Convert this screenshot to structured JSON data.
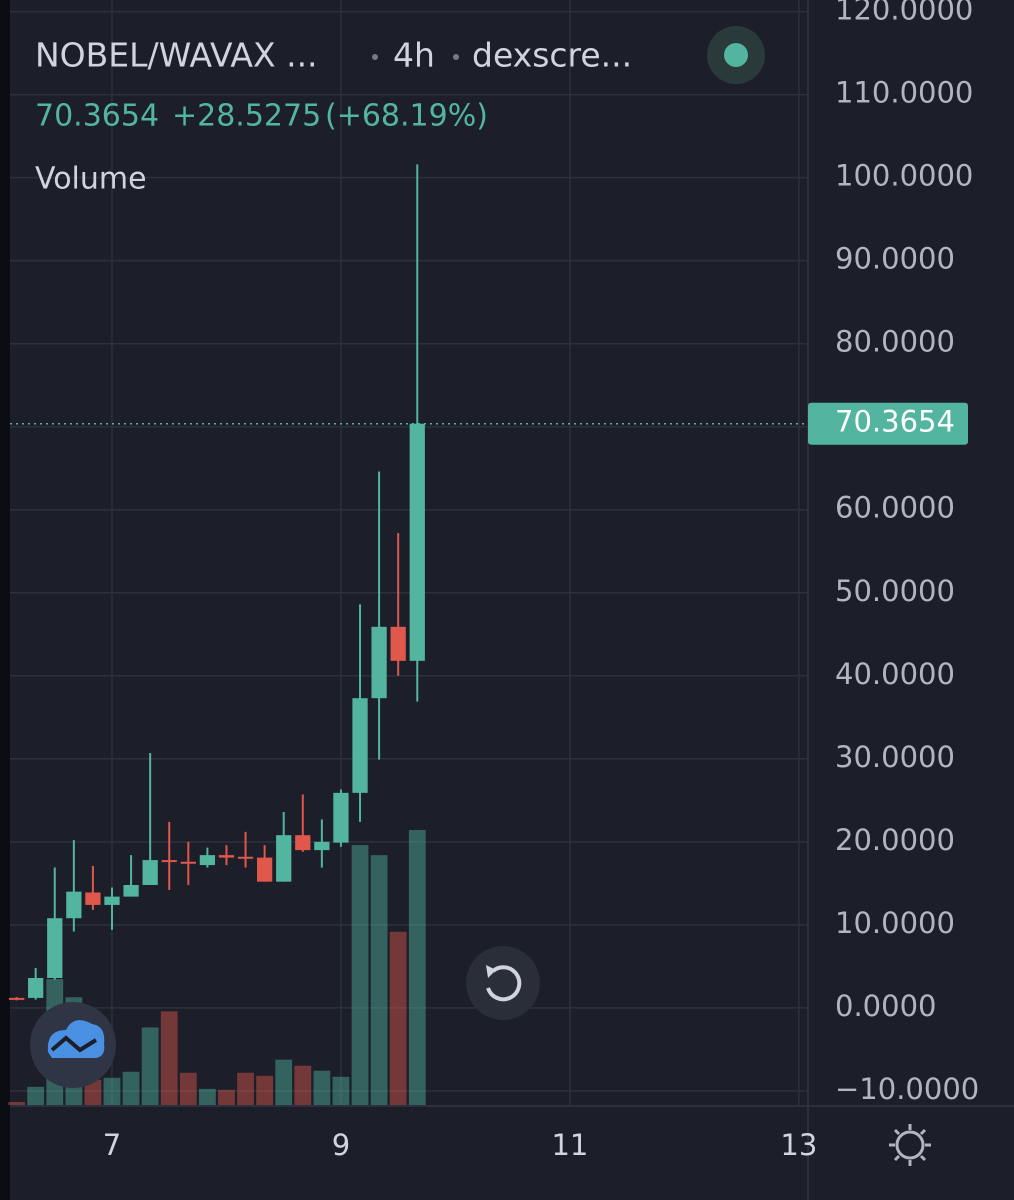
{
  "chart_data": {
    "type": "candlestick",
    "symbol": "NOBEL/WAVAX ...",
    "interval": "4h",
    "source": "dexscre...",
    "change": "+28.5275",
    "change_pct": "(+68.19%)",
    "volume_title": "Volume",
    "x": [
      6.1667,
      6.3333,
      6.5,
      6.6667,
      6.8333,
      7,
      7.1667,
      7.3333,
      7.5,
      7.6667,
      7.8333,
      8,
      8.1667,
      8.3333,
      8.5,
      8.6667,
      8.8333,
      9,
      9.1667,
      9.3333,
      9.5,
      9.6667
    ],
    "open": [
      1.2,
      1.2,
      3.6,
      10.8,
      13.9,
      12.4,
      13.4,
      14.8,
      17.8,
      17.6,
      17.2,
      18.4,
      18.2,
      18.1,
      15.2,
      20.8,
      19.0,
      19.9,
      25.9,
      37.3,
      45.9,
      41.8
    ],
    "high": [
      1.3,
      4.8,
      16.9,
      20.2,
      17.1,
      14.5,
      18.4,
      30.7,
      22.4,
      20.0,
      19.3,
      19.6,
      21.2,
      19.6,
      23.6,
      25.7,
      22.7,
      26.3,
      48.6,
      64.6,
      57.2,
      101.6
    ],
    "low": [
      0.9,
      1.0,
      3.4,
      9.2,
      11.8,
      9.4,
      13.6,
      14.8,
      14.2,
      14.8,
      16.9,
      17.2,
      16.9,
      15.2,
      15.2,
      18.8,
      16.9,
      19.4,
      22.4,
      29.9,
      40.0,
      36.9
    ],
    "close": [
      1.0,
      3.6,
      10.8,
      14.0,
      12.4,
      13.4,
      14.8,
      17.8,
      17.6,
      17.5,
      18.4,
      18.1,
      18.0,
      15.2,
      20.8,
      19.0,
      20.0,
      25.9,
      37.3,
      45.9,
      41.8,
      70.3654
    ],
    "volume": [
      3,
      18,
      125,
      107,
      25,
      27,
      33,
      77,
      93,
      32,
      16,
      15,
      32,
      29,
      45,
      39,
      34,
      28,
      258,
      248,
      172,
      273
    ],
    "up_color": "#53b59f",
    "down_color": "#e0574c",
    "xlim": [
      6.109,
      13.08
    ],
    "xticks": [
      7,
      9,
      11,
      13
    ],
    "ylim": [
      -11.7,
      121.4
    ],
    "yticks": [
      {
        "value": -10,
        "label": "−10.0000"
      },
      {
        "value": 0,
        "label": "0.0000"
      },
      {
        "value": 10,
        "label": "10.0000"
      },
      {
        "value": 20,
        "label": "20.0000"
      },
      {
        "value": 30,
        "label": "30.0000"
      },
      {
        "value": 40,
        "label": "40.0000"
      },
      {
        "value": 50,
        "label": "50.0000"
      },
      {
        "value": 60,
        "label": "60.0000"
      },
      {
        "value": 70,
        "label": "70.0000"
      },
      {
        "value": 80,
        "label": "80.0000"
      },
      {
        "value": 90,
        "label": "90.0000"
      },
      {
        "value": 100,
        "label": "100.0000"
      },
      {
        "value": 110,
        "label": "110.0000"
      },
      {
        "value": 120,
        "label": "120.0000"
      }
    ],
    "grid": true
  }
}
